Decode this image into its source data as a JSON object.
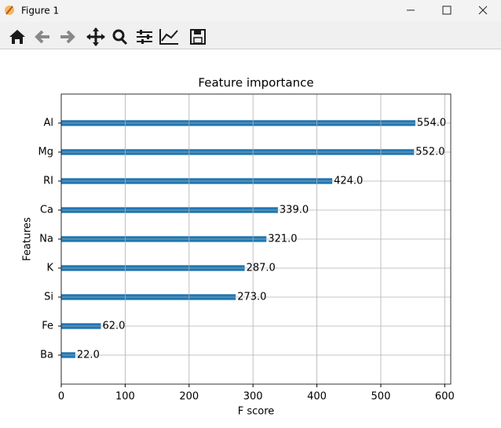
{
  "window": {
    "title": "Figure 1"
  },
  "chart_data": {
    "type": "barh",
    "title": "Feature importance",
    "xlabel": "F score",
    "ylabel": "Features",
    "categories": [
      "Al",
      "Mg",
      "RI",
      "Ca",
      "Na",
      "K",
      "Si",
      "Fe",
      "Ba"
    ],
    "values": [
      554,
      552,
      424,
      339,
      321,
      287,
      273,
      62,
      22
    ],
    "value_labels": [
      "554.0",
      "552.0",
      "424.0",
      "339.0",
      "321.0",
      "287.0",
      "273.0",
      "62.0",
      "22.0"
    ],
    "color": "#1f77b4",
    "xlim": [
      0,
      609.4
    ],
    "xticks": [
      0,
      100,
      200,
      300,
      400,
      500,
      600
    ],
    "grid": true
  }
}
